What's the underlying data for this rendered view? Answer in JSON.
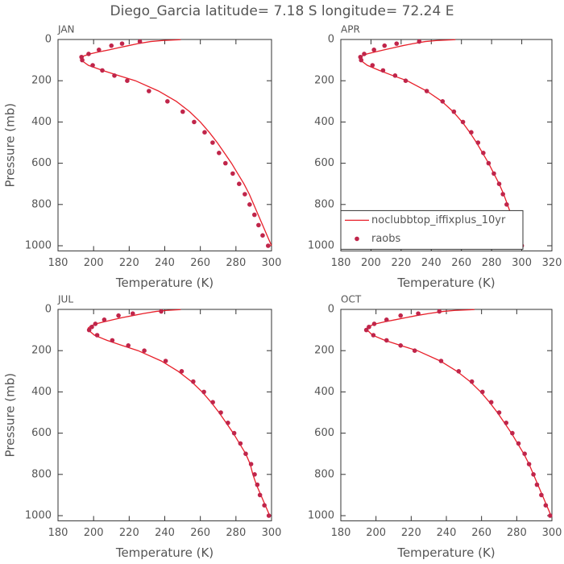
{
  "title": "Diego_Garcia  latitude= 7.18 S longitude= 72.24 E",
  "chart_data": [
    {
      "type": "line",
      "title": "JAN",
      "xlabel": "Temperature (K)",
      "ylabel": "Pressure (mb)",
      "xlim": [
        180,
        300
      ],
      "xticks": [
        180,
        200,
        220,
        240,
        260,
        280,
        300
      ],
      "ylim": [
        0,
        1025
      ],
      "yticks": [
        0,
        200,
        400,
        600,
        800,
        1000
      ],
      "y_inverted": true,
      "series": [
        {
          "style": "line",
          "color": "#e8202a",
          "x": [
            300,
            297.5,
            295,
            292.5,
            290,
            287.5,
            284.5,
            281,
            277.5,
            273.5,
            269.5,
            265,
            260,
            254,
            246.5,
            236.5,
            223.5,
            214,
            205,
            197,
            193,
            193,
            194.5,
            198,
            203,
            209,
            214,
            219.5,
            225,
            232,
            239,
            249
          ],
          "y": [
            1000,
            950,
            900,
            850,
            800,
            750,
            700,
            650,
            600,
            550,
            500,
            450,
            400,
            350,
            300,
            250,
            200,
            175,
            150,
            125,
            100,
            90,
            80,
            70,
            60,
            50,
            40,
            30,
            20,
            10,
            5,
            1
          ]
        },
        {
          "style": "marker",
          "color": "#c0254a",
          "x": [
            298.1,
            295,
            292.7,
            290.4,
            287.7,
            285,
            281.8,
            278.2,
            274.1,
            270.5,
            266.9,
            262.4,
            256.5,
            250.1,
            241.5,
            231.1,
            218.9,
            211.7,
            204.9,
            199.5,
            193.6,
            193.2,
            197.2,
            203,
            210,
            216,
            226
          ],
          "y": [
            1000,
            950,
            900,
            850,
            800,
            750,
            700,
            650,
            600,
            550,
            500,
            450,
            400,
            350,
            300,
            250,
            200,
            175,
            150,
            125,
            100,
            85,
            70,
            50,
            30,
            20,
            10
          ]
        }
      ]
    },
    {
      "type": "line",
      "title": "APR",
      "xlabel": "Temperature (K)",
      "xlim": [
        180,
        320
      ],
      "xticks": [
        180,
        200,
        220,
        240,
        260,
        280,
        300,
        320
      ],
      "ylim": [
        0,
        1025
      ],
      "yticks": [
        0,
        200,
        400,
        600,
        800,
        1000
      ],
      "y_inverted": true,
      "legend": true,
      "legend_position": "lower left",
      "series": [
        {
          "name": "noclubbtop_iffixplus_10yr",
          "style": "line",
          "color": "#e8202a",
          "x": [
            300.5,
            298,
            295.5,
            293,
            290.5,
            288,
            285,
            281.5,
            278,
            274,
            270,
            265.5,
            260.5,
            254.5,
            247,
            237,
            224,
            214.5,
            205.5,
            197.5,
            193,
            192.5,
            194,
            197.5,
            203,
            209,
            215,
            221,
            228,
            236,
            244,
            256
          ],
          "y": [
            1000,
            950,
            900,
            850,
            800,
            750,
            700,
            650,
            600,
            550,
            500,
            450,
            400,
            350,
            300,
            250,
            200,
            175,
            150,
            125,
            100,
            90,
            80,
            70,
            60,
            50,
            40,
            30,
            20,
            10,
            5,
            1
          ]
        },
        {
          "name": "raobs",
          "style": "marker",
          "color": "#c0254a",
          "x": [
            300,
            297.5,
            295,
            292.5,
            290,
            287.5,
            285,
            281.5,
            278,
            274.5,
            271,
            266.5,
            261,
            255,
            247.5,
            237,
            223,
            216,
            208,
            201,
            193.5,
            193,
            195.5,
            202,
            209,
            217,
            232
          ],
          "y": [
            1000,
            950,
            900,
            850,
            800,
            750,
            700,
            650,
            600,
            550,
            500,
            450,
            400,
            350,
            300,
            250,
            200,
            175,
            150,
            125,
            100,
            85,
            70,
            50,
            30,
            20,
            10
          ]
        }
      ]
    },
    {
      "type": "line",
      "title": "JUL",
      "xlabel": "Temperature (K)",
      "ylabel": "Pressure (mb)",
      "xlim": [
        180,
        300
      ],
      "xticks": [
        180,
        200,
        220,
        240,
        260,
        280,
        300
      ],
      "ylim": [
        0,
        1025
      ],
      "yticks": [
        0,
        200,
        400,
        600,
        800,
        1000
      ],
      "y_inverted": true,
      "series": [
        {
          "style": "line",
          "color": "#e8202a",
          "x": [
            299,
            296.5,
            294,
            291.5,
            289.5,
            288,
            285.5,
            282,
            278.5,
            274.5,
            270.5,
            266,
            261,
            255,
            247.5,
            238,
            225,
            216,
            207.5,
            200.5,
            197,
            197,
            198.5,
            201.5,
            206,
            211,
            216,
            222,
            228,
            235,
            241,
            249
          ],
          "y": [
            1000,
            950,
            900,
            850,
            800,
            750,
            700,
            650,
            600,
            550,
            500,
            450,
            400,
            350,
            300,
            250,
            200,
            175,
            150,
            125,
            100,
            90,
            80,
            70,
            60,
            50,
            40,
            30,
            20,
            10,
            5,
            1
          ]
        },
        {
          "style": "marker",
          "color": "#c0254a",
          "x": [
            298.5,
            296,
            293.5,
            292,
            290.5,
            288.5,
            285.5,
            282.5,
            279,
            275.5,
            271.5,
            267,
            262,
            256,
            249.5,
            240.5,
            228.5,
            219.5,
            210.5,
            202,
            197.5,
            199,
            201,
            206,
            214,
            222,
            238
          ],
          "y": [
            1000,
            950,
            900,
            850,
            800,
            750,
            700,
            650,
            600,
            550,
            500,
            450,
            400,
            350,
            300,
            250,
            200,
            175,
            150,
            125,
            100,
            85,
            70,
            50,
            30,
            20,
            10
          ]
        }
      ]
    },
    {
      "type": "line",
      "title": "OCT",
      "xlabel": "Temperature (K)",
      "xlim": [
        180,
        300
      ],
      "xticks": [
        180,
        200,
        220,
        240,
        260,
        280,
        300
      ],
      "ylim": [
        0,
        1025
      ],
      "yticks": [
        0,
        200,
        400,
        600,
        800,
        1000
      ],
      "y_inverted": true,
      "series": [
        {
          "style": "line",
          "color": "#e8202a",
          "x": [
            299.5,
            297,
            294.5,
            292,
            289.5,
            287,
            284,
            280.5,
            277,
            273,
            269,
            264.5,
            259.5,
            253.5,
            246,
            236.5,
            223.5,
            214,
            205,
            198,
            195,
            195,
            196.5,
            200,
            205,
            211,
            217,
            223,
            230,
            238,
            245,
            256
          ],
          "y": [
            1000,
            950,
            900,
            850,
            800,
            750,
            700,
            650,
            600,
            550,
            500,
            450,
            400,
            350,
            300,
            250,
            200,
            175,
            150,
            125,
            100,
            90,
            80,
            70,
            60,
            50,
            40,
            30,
            20,
            10,
            5,
            1
          ]
        },
        {
          "style": "marker",
          "color": "#c0254a",
          "x": [
            299,
            296.5,
            294,
            291.5,
            289.5,
            287,
            284.5,
            281,
            277.5,
            274,
            270,
            265.5,
            260.5,
            254.5,
            247,
            237,
            222,
            214,
            206,
            198.5,
            194.5,
            196,
            199,
            206,
            214,
            224,
            236
          ],
          "y": [
            1000,
            950,
            900,
            850,
            800,
            750,
            700,
            650,
            600,
            550,
            500,
            450,
            400,
            350,
            300,
            250,
            200,
            175,
            150,
            125,
            100,
            85,
            70,
            50,
            30,
            20,
            10
          ]
        }
      ]
    }
  ]
}
